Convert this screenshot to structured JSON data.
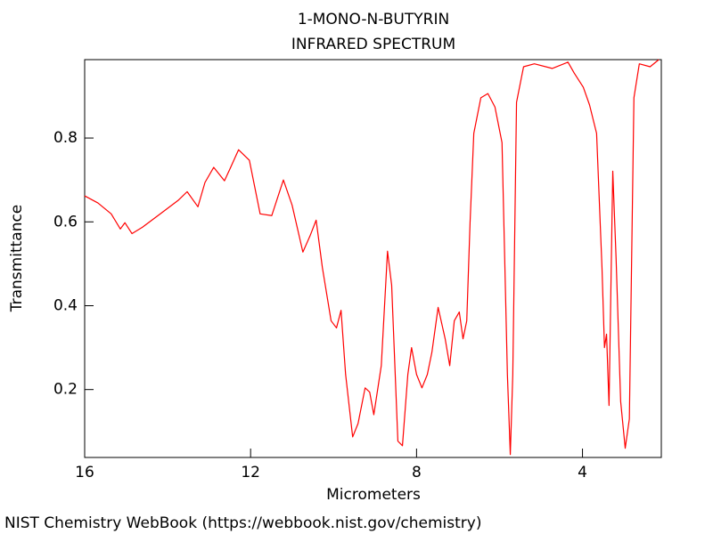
{
  "chart_data": {
    "type": "line",
    "title": "1-MONO-N-BUTYRIN",
    "subtitle": "INFRARED SPECTRUM",
    "x_label": "Micrometers",
    "y_label": "Transmittance",
    "source": "NIST Chemistry WebBook (https://webbook.nist.gov/chemistry)",
    "color": "#ff0000",
    "xlim": [
      16,
      2.1
    ],
    "ylim": [
      0.038,
      0.987
    ],
    "xticks": [
      16,
      12,
      8,
      4
    ],
    "yticks": [
      0.2,
      0.4,
      0.6,
      0.8
    ],
    "x": [
      16,
      15.68,
      15.36,
      15.14,
      15.03,
      14.86,
      14.61,
      14.18,
      13.75,
      13.53,
      13.27,
      13.1,
      12.89,
      12.63,
      12.5,
      12.29,
      12.03,
      11.77,
      11.49,
      11.21,
      11.0,
      10.74,
      10.57,
      10.42,
      10.27,
      10.06,
      9.93,
      9.82,
      9.71,
      9.54,
      9.41,
      9.24,
      9.13,
      9.03,
      8.85,
      8.7,
      8.6,
      8.45,
      8.34,
      8.21,
      8.12,
      8.0,
      7.87,
      7.74,
      7.63,
      7.48,
      7.31,
      7.2,
      7.09,
      6.97,
      6.88,
      6.79,
      6.71,
      6.62,
      6.45,
      6.28,
      6.11,
      5.94,
      5.81,
      5.74,
      5.68,
      5.59,
      5.42,
      5.16,
      4.73,
      4.35,
      4.2,
      3.98,
      3.83,
      3.66,
      3.53,
      3.47,
      3.42,
      3.36,
      3.27,
      3.19,
      3.08,
      2.97,
      2.87,
      2.76,
      2.63,
      2.37,
      2.16
    ],
    "values": [
      0.662,
      0.645,
      0.619,
      0.583,
      0.598,
      0.572,
      0.587,
      0.619,
      0.651,
      0.672,
      0.636,
      0.694,
      0.73,
      0.698,
      0.726,
      0.772,
      0.747,
      0.619,
      0.615,
      0.7,
      0.64,
      0.528,
      0.566,
      0.604,
      0.491,
      0.364,
      0.347,
      0.389,
      0.236,
      0.087,
      0.119,
      0.204,
      0.194,
      0.14,
      0.257,
      0.53,
      0.449,
      0.077,
      0.066,
      0.236,
      0.3,
      0.236,
      0.204,
      0.236,
      0.289,
      0.396,
      0.321,
      0.257,
      0.364,
      0.385,
      0.321,
      0.364,
      0.598,
      0.811,
      0.896,
      0.906,
      0.874,
      0.789,
      0.236,
      0.045,
      0.236,
      0.885,
      0.97,
      0.977,
      0.966,
      0.981,
      0.955,
      0.921,
      0.879,
      0.811,
      0.491,
      0.3,
      0.332,
      0.162,
      0.721,
      0.513,
      0.172,
      0.06,
      0.13,
      0.896,
      0.977,
      0.97,
      0.987
    ]
  }
}
